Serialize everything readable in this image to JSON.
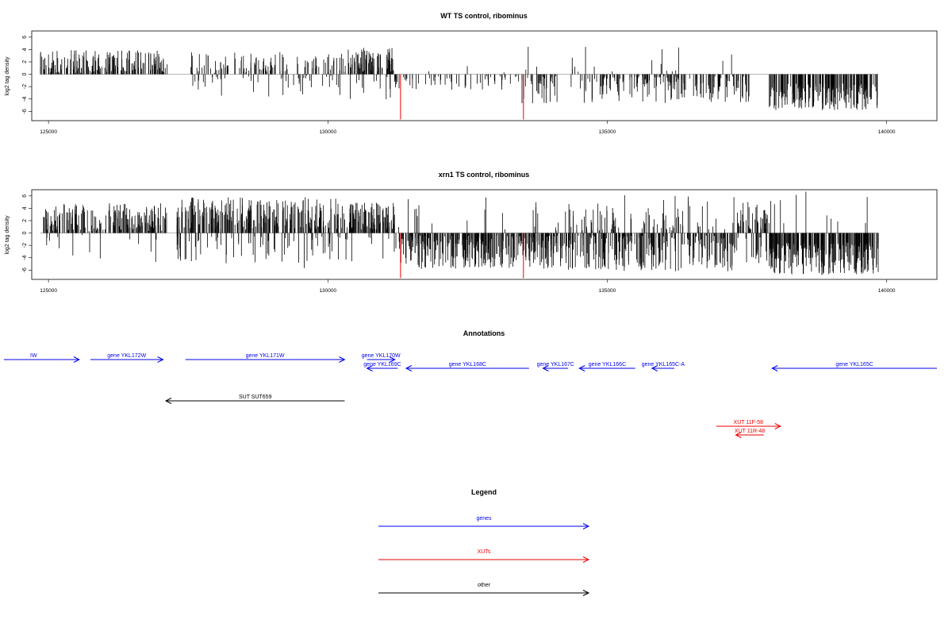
{
  "chart_data": [
    {
      "type": "bar",
      "title": "WT TS control, ribominus",
      "ylabel": "log2 tag density",
      "xlim": [
        124700,
        140900
      ],
      "ylim": [
        -7.5,
        7
      ],
      "yticks": [
        -6,
        -4,
        -2,
        0,
        2,
        4,
        6
      ],
      "xticks": [
        125000,
        130000,
        135000,
        140000
      ],
      "data_range": [
        124850,
        139850
      ],
      "gaps": [
        [
          127150,
          127550
        ],
        [
          134150,
          134350
        ],
        [
          137550,
          137900
        ]
      ],
      "regions": [
        {
          "from": 124850,
          "to": 127150,
          "lo": 0.2,
          "hi": 3.9,
          "pos": 0.98,
          "count": 190
        },
        {
          "from": 127550,
          "to": 130350,
          "lo": 0.2,
          "hi": 3.6,
          "pos": 0.72,
          "count": 150
        },
        {
          "from": 130350,
          "to": 131200,
          "lo": 0.4,
          "hi": 4.3,
          "pos": 0.92,
          "count": 90
        },
        {
          "from": 131200,
          "to": 133450,
          "lo": 0.3,
          "hi": 2.5,
          "pos": 0.04,
          "count": 60
        },
        {
          "from": 133450,
          "to": 137550,
          "lo": 0.3,
          "hi": 4.8,
          "pos": 0.1,
          "count": 230
        },
        {
          "from": 137550,
          "to": 137900,
          "lo": 0.5,
          "hi": 2.6,
          "pos": 0.7,
          "count": 14
        },
        {
          "from": 137900,
          "to": 139850,
          "lo": 1.5,
          "hi": 5.8,
          "pos": 0.0,
          "count": 200
        }
      ],
      "red_spikes": [
        {
          "x": 131300,
          "y": -7.3
        },
        {
          "x": 133500,
          "y": -7.3
        }
      ]
    },
    {
      "type": "bar",
      "title": "xrn1 TS control, ribominus",
      "ylabel": "log2 tag density",
      "xlim": [
        124700,
        140900
      ],
      "ylim": [
        -7.5,
        7
      ],
      "yticks": [
        -6,
        -4,
        -2,
        0,
        2,
        4,
        6
      ],
      "xticks": [
        125000,
        130000,
        135000,
        140000
      ],
      "data_range": [
        124850,
        139850
      ],
      "gaps": [
        [
          127150,
          127300
        ]
      ],
      "regions": [
        {
          "from": 124850,
          "to": 127150,
          "lo": 0.3,
          "hi": 4.8,
          "pos": 0.95,
          "count": 200
        },
        {
          "from": 127300,
          "to": 130350,
          "lo": 0.5,
          "hi": 5.8,
          "pos": 0.8,
          "count": 320
        },
        {
          "from": 130350,
          "to": 131200,
          "lo": 0.5,
          "hi": 5.0,
          "pos": 0.9,
          "count": 100
        },
        {
          "from": 131200,
          "to": 134000,
          "lo": 0.4,
          "hi": 5.8,
          "pos": 0.05,
          "count": 300
        },
        {
          "from": 134000,
          "to": 137300,
          "lo": 0.4,
          "hi": 6.2,
          "pos": 0.25,
          "count": 340
        },
        {
          "from": 137300,
          "to": 137900,
          "lo": 0.5,
          "hi": 5.0,
          "pos": 0.75,
          "count": 60
        },
        {
          "from": 137900,
          "to": 139850,
          "lo": 1.5,
          "hi": 6.8,
          "pos": 0.05,
          "count": 260
        }
      ],
      "red_spikes": [
        {
          "x": 131300,
          "y": -7.3
        },
        {
          "x": 133500,
          "y": -7.3
        }
      ]
    }
  ],
  "annotations": {
    "title": "Annotations",
    "xlim": [
      124700,
      140900
    ],
    "colors": {
      "genes": "#0000ee",
      "XUTs": "#ee0000",
      "other": "#000000"
    },
    "features": [
      {
        "label": "IW",
        "category": "genes",
        "start": 124200,
        "end": 125550,
        "strand": "+",
        "track": 0
      },
      {
        "label": "gene YKL172W",
        "category": "genes",
        "start": 125750,
        "end": 127050,
        "strand": "+",
        "track": 0
      },
      {
        "label": "gene YKL171W",
        "category": "genes",
        "start": 127450,
        "end": 130300,
        "strand": "+",
        "track": 0
      },
      {
        "label": "gene YKL170W",
        "category": "genes",
        "start": 130700,
        "end": 131200,
        "strand": "+",
        "track": 0
      },
      {
        "label": "gene YKL169C",
        "category": "genes",
        "start": 130700,
        "end": 131250,
        "strand": "-",
        "track": 1
      },
      {
        "label": "gene YKL168C",
        "category": "genes",
        "start": 131400,
        "end": 133600,
        "strand": "-",
        "track": 1
      },
      {
        "label": "gene YKL167C",
        "category": "genes",
        "start": 133850,
        "end": 134300,
        "strand": "-",
        "track": 1
      },
      {
        "label": "gene YKL166C",
        "category": "genes",
        "start": 134500,
        "end": 135500,
        "strand": "-",
        "track": 1
      },
      {
        "label": "gene YKL165C-A",
        "category": "genes",
        "start": 135800,
        "end": 136200,
        "strand": "-",
        "track": 1
      },
      {
        "label": "gene YKL165C",
        "category": "genes",
        "start": 137950,
        "end": 140900,
        "strand": "-",
        "track": 1
      },
      {
        "label": "SUT SUT659",
        "category": "other",
        "start": 127100,
        "end": 130300,
        "strand": "-",
        "track": 2
      },
      {
        "label": "XUT 11F-58",
        "category": "XUTs",
        "start": 136950,
        "end": 138100,
        "strand": "+",
        "track": 3
      },
      {
        "label": "XUT 11R-48",
        "category": "XUTs",
        "start": 137300,
        "end": 137800,
        "strand": "-",
        "track": 4
      }
    ]
  },
  "legend": {
    "title": "Legend",
    "entries": [
      {
        "label": "genes",
        "color": "#0000ee"
      },
      {
        "label": "XUTs",
        "color": "#ee0000"
      },
      {
        "label": "other",
        "color": "#000000"
      }
    ]
  }
}
